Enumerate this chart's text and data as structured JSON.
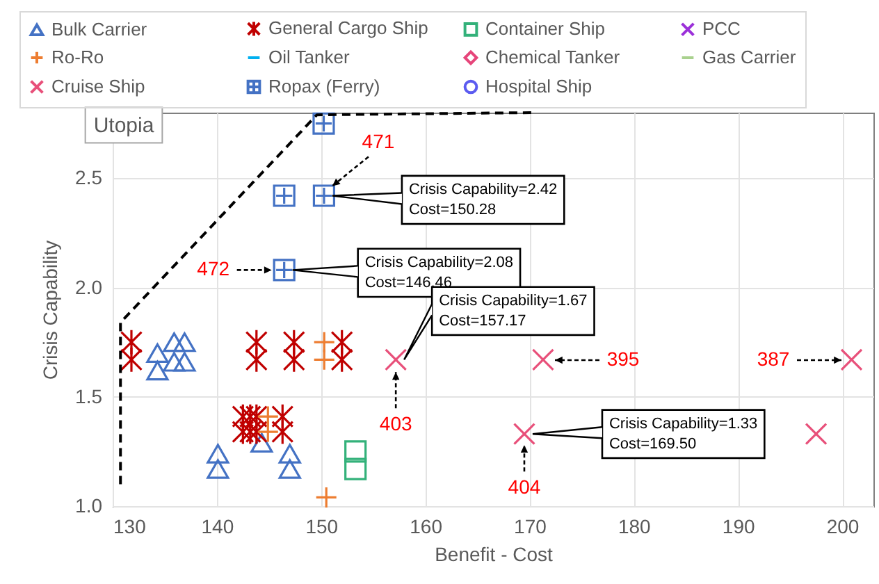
{
  "chart_data": {
    "type": "scatter",
    "xlabel": "Benefit - Cost",
    "ylabel": "Crisis Capability",
    "xlim": [
      130,
      203
    ],
    "ylim": [
      1.0,
      2.8
    ],
    "xticks": [
      130,
      140,
      150,
      160,
      170,
      180,
      190,
      200
    ],
    "yticks": [
      {
        "value": 1,
        "label": "1.0"
      },
      {
        "value": 1.5,
        "label": "1.5"
      },
      {
        "value": 2,
        "label": "2.0"
      },
      {
        "value": 2.5,
        "label": "2.5"
      }
    ],
    "grid": true,
    "legend": "top",
    "series": [
      {
        "name": "Bulk Carrier",
        "color": "#4472c4",
        "marker": "triangle",
        "x": [
          134.3,
          134.3,
          135.9,
          135.9,
          136.9,
          136.9,
          140.1,
          140.1,
          144.3,
          147.0,
          147.0
        ],
        "values": [
          1.7,
          1.62,
          1.75,
          1.66,
          1.75,
          1.66,
          1.24,
          1.17,
          1.29,
          1.24,
          1.17
        ]
      },
      {
        "name": "General Cargo Ship",
        "color": "#c00000",
        "x": [
          131.8,
          131.8,
          143.8,
          143.8,
          147.4,
          147.4,
          152.0,
          152.0,
          142.5,
          142.5,
          143.2,
          143.2,
          143.8,
          143.8,
          146.3,
          146.3
        ],
        "values": [
          1.75,
          1.67,
          1.75,
          1.67,
          1.75,
          1.67,
          1.75,
          1.67,
          1.41,
          1.34,
          1.41,
          1.34,
          1.41,
          1.34,
          1.41,
          1.34
        ]
      },
      {
        "name": "Container Ship",
        "color": "#33b17a",
        "marker": "square",
        "x": [
          153.3,
          153.3
        ],
        "values": [
          1.25,
          1.17
        ]
      },
      {
        "name": "PCC",
        "color": "#9b30d9",
        "marker": "cross"
      },
      {
        "name": "Ro-Ro",
        "color": "#ed7d31",
        "marker": "plus",
        "x": [
          150.3,
          150.3,
          144.9,
          144.9,
          150.5
        ],
        "values": [
          1.75,
          1.67,
          1.41,
          1.34,
          1.04
        ]
      },
      {
        "name": "Oil Tanker",
        "color": "#00b0f0",
        "marker": "dash"
      },
      {
        "name": "Chemical Tanker",
        "color": "#e6457a",
        "marker": "diamond"
      },
      {
        "name": "Gas Carrier",
        "color": "#a9d18e",
        "marker": "dash"
      },
      {
        "name": "Cruise Ship",
        "color": "#e8507a",
        "marker": "cross",
        "x": [
          157.17,
          171.3,
          169.5,
          200.9,
          197.5
        ],
        "values": [
          1.67,
          1.67,
          1.33,
          1.67,
          1.33
        ]
      },
      {
        "name": "Ropax (Ferry)",
        "color": "#4472c4",
        "x": [
          150.25,
          146.46,
          150.28,
          146.46
        ],
        "values": [
          2.75,
          2.42,
          2.42,
          2.08
        ]
      },
      {
        "name": "Hospital Ship",
        "color": "#5b5bf0",
        "marker": "circle"
      },
      {
        "type": "line",
        "color": "#000000",
        "line_style": "dashed",
        "x": [
          130.75,
          130.75,
          149.6,
          170.2
        ],
        "values": [
          1.1,
          1.84,
          2.79,
          2.8
        ]
      }
    ],
    "annotations": [
      "Utopia",
      {
        "text": "471",
        "x": 150.28,
        "y": 2.42
      },
      {
        "text": "472",
        "x": 146.46,
        "y": 2.08
      },
      {
        "text": "403",
        "x": 157.17,
        "y": 1.67
      },
      "395",
      "387",
      {
        "text": "404",
        "x": 169.5,
        "y": 1.33
      },
      {
        "text": "Crisis Capability=2.42\nCost=150.28",
        "x": 150.28,
        "y": 2.42
      },
      {
        "text": "Crisis Capability=2.08\nCost=146.46",
        "x": 146.46,
        "y": 2.08
      },
      {
        "text": "Crisis Capability=1.67\nCost=157.17",
        "x": 157.17,
        "y": 1.67
      },
      {
        "text": "Crisis Capability=1.33\nCost=169.50",
        "x": 169.5,
        "y": 1.33
      }
    ]
  }
}
